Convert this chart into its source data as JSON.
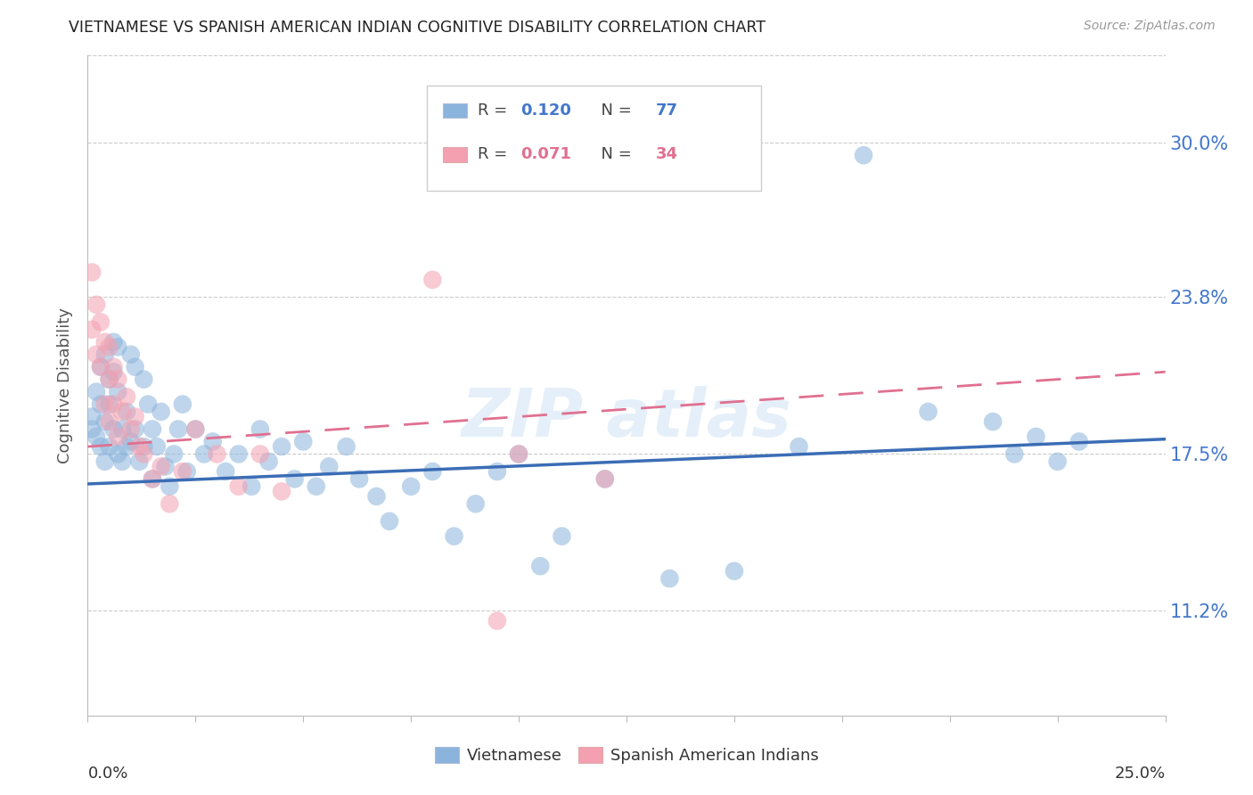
{
  "title": "VIETNAMESE VS SPANISH AMERICAN INDIAN COGNITIVE DISABILITY CORRELATION CHART",
  "source": "Source: ZipAtlas.com",
  "ylabel": "Cognitive Disability",
  "ytick_values": [
    0.112,
    0.175,
    0.238,
    0.3
  ],
  "xlim": [
    0.0,
    0.25
  ],
  "ylim": [
    0.07,
    0.335
  ],
  "color_blue": "#8BB4DC",
  "color_pink": "#F4A0B0",
  "trendline_blue_color": "#3B6DB5",
  "trendline_pink_color": "#E07090",
  "grid_color": "#CCCCCC",
  "viet_R": 0.12,
  "span_R": 0.071,
  "viet_N": 77,
  "span_N": 34,
  "blue_intercept": 0.163,
  "blue_slope": 0.072,
  "pink_intercept": 0.178,
  "pink_slope": 0.12,
  "vietnamese_x": [
    0.001,
    0.001,
    0.002,
    0.002,
    0.003,
    0.003,
    0.003,
    0.004,
    0.004,
    0.004,
    0.005,
    0.005,
    0.005,
    0.006,
    0.006,
    0.006,
    0.007,
    0.007,
    0.007,
    0.008,
    0.008,
    0.009,
    0.009,
    0.01,
    0.01,
    0.011,
    0.011,
    0.012,
    0.013,
    0.013,
    0.014,
    0.015,
    0.015,
    0.016,
    0.017,
    0.018,
    0.019,
    0.02,
    0.021,
    0.022,
    0.023,
    0.025,
    0.027,
    0.029,
    0.032,
    0.035,
    0.038,
    0.04,
    0.042,
    0.045,
    0.048,
    0.05,
    0.053,
    0.056,
    0.06,
    0.063,
    0.067,
    0.07,
    0.075,
    0.08,
    0.085,
    0.09,
    0.095,
    0.1,
    0.105,
    0.11,
    0.12,
    0.135,
    0.15,
    0.165,
    0.18,
    0.195,
    0.21,
    0.215,
    0.22,
    0.225,
    0.23
  ],
  "vietnamese_y": [
    0.19,
    0.185,
    0.2,
    0.182,
    0.21,
    0.195,
    0.178,
    0.215,
    0.188,
    0.172,
    0.205,
    0.195,
    0.178,
    0.22,
    0.208,
    0.185,
    0.218,
    0.2,
    0.175,
    0.185,
    0.172,
    0.192,
    0.178,
    0.215,
    0.18,
    0.21,
    0.185,
    0.172,
    0.205,
    0.178,
    0.195,
    0.185,
    0.165,
    0.178,
    0.192,
    0.17,
    0.162,
    0.175,
    0.185,
    0.195,
    0.168,
    0.185,
    0.175,
    0.18,
    0.168,
    0.175,
    0.162,
    0.185,
    0.172,
    0.178,
    0.165,
    0.18,
    0.162,
    0.17,
    0.178,
    0.165,
    0.158,
    0.148,
    0.162,
    0.168,
    0.142,
    0.155,
    0.168,
    0.175,
    0.13,
    0.142,
    0.165,
    0.125,
    0.128,
    0.178,
    0.295,
    0.192,
    0.188,
    0.175,
    0.182,
    0.172,
    0.18
  ],
  "spanish_x": [
    0.001,
    0.001,
    0.002,
    0.002,
    0.003,
    0.003,
    0.004,
    0.004,
    0.005,
    0.005,
    0.005,
    0.006,
    0.006,
    0.007,
    0.007,
    0.008,
    0.009,
    0.01,
    0.011,
    0.012,
    0.013,
    0.015,
    0.017,
    0.019,
    0.022,
    0.025,
    0.03,
    0.035,
    0.04,
    0.045,
    0.08,
    0.095,
    0.1,
    0.12
  ],
  "spanish_y": [
    0.248,
    0.225,
    0.235,
    0.215,
    0.228,
    0.21,
    0.22,
    0.195,
    0.218,
    0.205,
    0.188,
    0.21,
    0.195,
    0.205,
    0.182,
    0.192,
    0.198,
    0.185,
    0.19,
    0.178,
    0.175,
    0.165,
    0.17,
    0.155,
    0.168,
    0.185,
    0.175,
    0.162,
    0.175,
    0.16,
    0.245,
    0.108,
    0.175,
    0.165
  ]
}
